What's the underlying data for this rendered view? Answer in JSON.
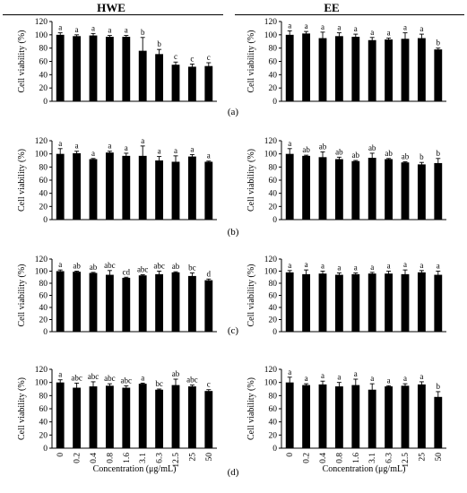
{
  "columns": [
    "HWE",
    "EE"
  ],
  "row_labels": [
    "(a)",
    "(b)",
    "(c)",
    "(d)"
  ],
  "chart_data": [
    {
      "type": "bar",
      "panel": "HWE (a)",
      "ylabel": "Cell viability (%)",
      "xlabel": "",
      "ylim": [
        0,
        120
      ],
      "yticks": [
        0,
        20,
        40,
        60,
        80,
        100,
        120
      ],
      "categories": [
        "0",
        "0.2",
        "0.4",
        "0.8",
        "1.6",
        "3.1",
        "6.3",
        "12.5",
        "25",
        "50"
      ],
      "values": [
        100,
        98,
        99,
        97,
        97,
        76,
        71,
        55,
        52,
        53
      ],
      "errors": [
        3,
        2,
        3,
        2,
        2,
        20,
        7,
        4,
        4,
        5
      ],
      "labels": [
        "a",
        "a",
        "a",
        "a",
        "a",
        "b",
        "b",
        "c",
        "c",
        "c"
      ]
    },
    {
      "type": "bar",
      "panel": "EE (a)",
      "ylabel": "Cell viability (%)",
      "xlabel": "",
      "ylim": [
        0,
        120
      ],
      "yticks": [
        0,
        20,
        40,
        60,
        80,
        100,
        120
      ],
      "categories": [
        "0",
        "0.2",
        "0.4",
        "0.8",
        "1.6",
        "3.1",
        "6.3",
        "12.5",
        "25",
        "50"
      ],
      "values": [
        100,
        102,
        95,
        98,
        97,
        92,
        93,
        94,
        95,
        78
      ],
      "errors": [
        6,
        3,
        9,
        5,
        4,
        4,
        2,
        9,
        6,
        2
      ],
      "labels": [
        "a",
        "a",
        "a",
        "a",
        "a",
        "a",
        "a",
        "a",
        "a",
        "b"
      ]
    },
    {
      "type": "bar",
      "panel": "HWE (b)",
      "ylabel": "Cell viability (%)",
      "xlabel": "",
      "ylim": [
        0,
        120
      ],
      "yticks": [
        0,
        20,
        40,
        60,
        80,
        100,
        120
      ],
      "categories": [
        "0",
        "0.2",
        "0.4",
        "0.8",
        "1.6",
        "3.1",
        "6.3",
        "12.5",
        "25",
        "50"
      ],
      "values": [
        100,
        101,
        92,
        102,
        97,
        97,
        90,
        88,
        96,
        88
      ],
      "errors": [
        8,
        3,
        1,
        2,
        4,
        15,
        6,
        9,
        3,
        1
      ],
      "labels": [
        "a",
        "a",
        "a",
        "a",
        "a",
        "a",
        "a",
        "a",
        "a",
        "a"
      ]
    },
    {
      "type": "bar",
      "panel": "EE (b)",
      "ylabel": "Cell viability (%)",
      "xlabel": "",
      "ylim": [
        0,
        120
      ],
      "yticks": [
        0,
        20,
        40,
        60,
        80,
        100,
        120
      ],
      "categories": [
        "0",
        "0.2",
        "0.4",
        "0.8",
        "1.6",
        "3.1",
        "6.3",
        "12.5",
        "25",
        "50"
      ],
      "values": [
        100,
        97,
        95,
        92,
        89,
        94,
        92,
        87,
        84,
        86
      ],
      "errors": [
        8,
        1,
        8,
        3,
        1,
        7,
        1,
        1,
        3,
        7
      ],
      "labels": [
        "a",
        "ab",
        "ab",
        "ab",
        "ab",
        "ab",
        "ab",
        "ab",
        "b",
        "b"
      ]
    },
    {
      "type": "bar",
      "panel": "HWE (c)",
      "ylabel": "Cell viability (%)",
      "xlabel": "",
      "ylim": [
        0,
        120
      ],
      "yticks": [
        0,
        20,
        40,
        60,
        80,
        100,
        120
      ],
      "categories": [
        "0",
        "0.2",
        "0.4",
        "0.8",
        "1.6",
        "3.1",
        "6.3",
        "12.5",
        "25",
        "50"
      ],
      "values": [
        100,
        99,
        97,
        94,
        89,
        93,
        95,
        98,
        92,
        85
      ],
      "errors": [
        2,
        1,
        1,
        7,
        1,
        1,
        5,
        1,
        5,
        2
      ],
      "labels": [
        "a",
        "ab",
        "ab",
        "abc",
        "cd",
        "abc",
        "abc",
        "ab",
        "bc",
        "d"
      ]
    },
    {
      "type": "bar",
      "panel": "EE (c)",
      "ylabel": "Cell viability (%)",
      "xlabel": "",
      "ylim": [
        0,
        120
      ],
      "yticks": [
        0,
        20,
        40,
        60,
        80,
        100,
        120
      ],
      "categories": [
        "0",
        "0.2",
        "0.4",
        "0.8",
        "1.6",
        "3.1",
        "6.3",
        "12.5",
        "25",
        "50"
      ],
      "values": [
        98,
        95,
        96,
        94,
        95,
        96,
        96,
        95,
        98,
        94
      ],
      "errors": [
        3,
        7,
        4,
        3,
        2,
        2,
        4,
        7,
        3,
        6
      ],
      "labels": [
        "a",
        "a",
        "a",
        "a",
        "a",
        "a",
        "a",
        "a",
        "a",
        "a"
      ]
    },
    {
      "type": "bar",
      "panel": "HWE (d)",
      "ylabel": "Cell viability (%)",
      "xlabel": "Concentration (μg/mL)",
      "ylim": [
        0,
        120
      ],
      "yticks": [
        0,
        20,
        40,
        60,
        80,
        100,
        120
      ],
      "categories": [
        "0",
        "0.2",
        "0.4",
        "0.8",
        "1.6",
        "3.1",
        "6.3",
        "12.5",
        "25",
        "50"
      ],
      "values": [
        100,
        92,
        94,
        95,
        92,
        98,
        89,
        96,
        94,
        87
      ],
      "errors": [
        4,
        7,
        7,
        3,
        3,
        1,
        1,
        9,
        2,
        2
      ],
      "labels": [
        "a",
        "abc",
        "abc",
        "abc",
        "abc",
        "a",
        "bc",
        "ab",
        "abc",
        "c"
      ]
    },
    {
      "type": "bar",
      "panel": "EE (d)",
      "ylabel": "Cell viability (%)",
      "xlabel": "Concentration (μg/mL)",
      "ylim": [
        0,
        120
      ],
      "yticks": [
        0,
        20,
        40,
        60,
        80,
        100,
        120
      ],
      "categories": [
        "0",
        "0.2",
        "0.4",
        "0.8",
        "1.6",
        "3.1",
        "6.3",
        "12.5",
        "25",
        "50"
      ],
      "values": [
        100,
        96,
        97,
        94,
        96,
        89,
        94,
        95,
        97,
        78
      ],
      "errors": [
        8,
        2,
        5,
        6,
        9,
        9,
        1,
        3,
        4,
        8
      ],
      "labels": [
        "a",
        "a",
        "a",
        "a",
        "a",
        "a",
        "a",
        "a",
        "a",
        "b"
      ]
    }
  ]
}
